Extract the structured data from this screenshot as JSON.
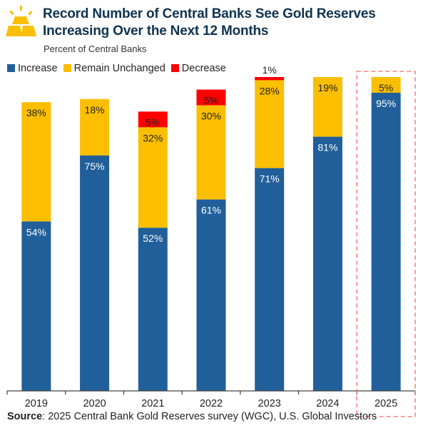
{
  "title_line1": "Record Number of Central Banks See Gold Reserves",
  "title_line2": "Increasing Over the Next 12 Months",
  "subtitle": "Percent of Central Banks",
  "source_label": "Source",
  "source_text": ": 2025 Central Bank Gold Reserves survey (WGC), U.S. Global Investors",
  "logo": "gold-bars-icon",
  "colors": {
    "Increase": "#215f9a",
    "Remain Unchanged": "#fcbf00",
    "Decrease": "#ff0000",
    "highlight": "#f26b6b"
  },
  "chart_data": {
    "type": "bar",
    "stacked": true,
    "categories": [
      "2019",
      "2020",
      "2021",
      "2022",
      "2023",
      "2024",
      "2025"
    ],
    "series": [
      {
        "name": "Increase",
        "values": [
          54,
          75,
          52,
          61,
          71,
          81,
          95
        ]
      },
      {
        "name": "Remain Unchanged",
        "values": [
          38,
          18,
          32,
          30,
          28,
          19,
          5
        ]
      },
      {
        "name": "Decrease",
        "values": [
          0,
          0,
          5,
          5,
          1,
          0,
          0
        ]
      }
    ],
    "labels": [
      [
        "54%",
        "75%",
        "52%",
        "61%",
        "71%",
        "81%",
        "95%"
      ],
      [
        "38%",
        "18%",
        "32%",
        "30%",
        "28%",
        "19%",
        "5%"
      ],
      [
        "",
        "",
        "5%",
        "5%",
        "1%",
        "",
        ""
      ]
    ],
    "ylim": [
      0,
      100
    ],
    "grid": false,
    "legend": "top-left",
    "highlighted_category": "2025"
  }
}
